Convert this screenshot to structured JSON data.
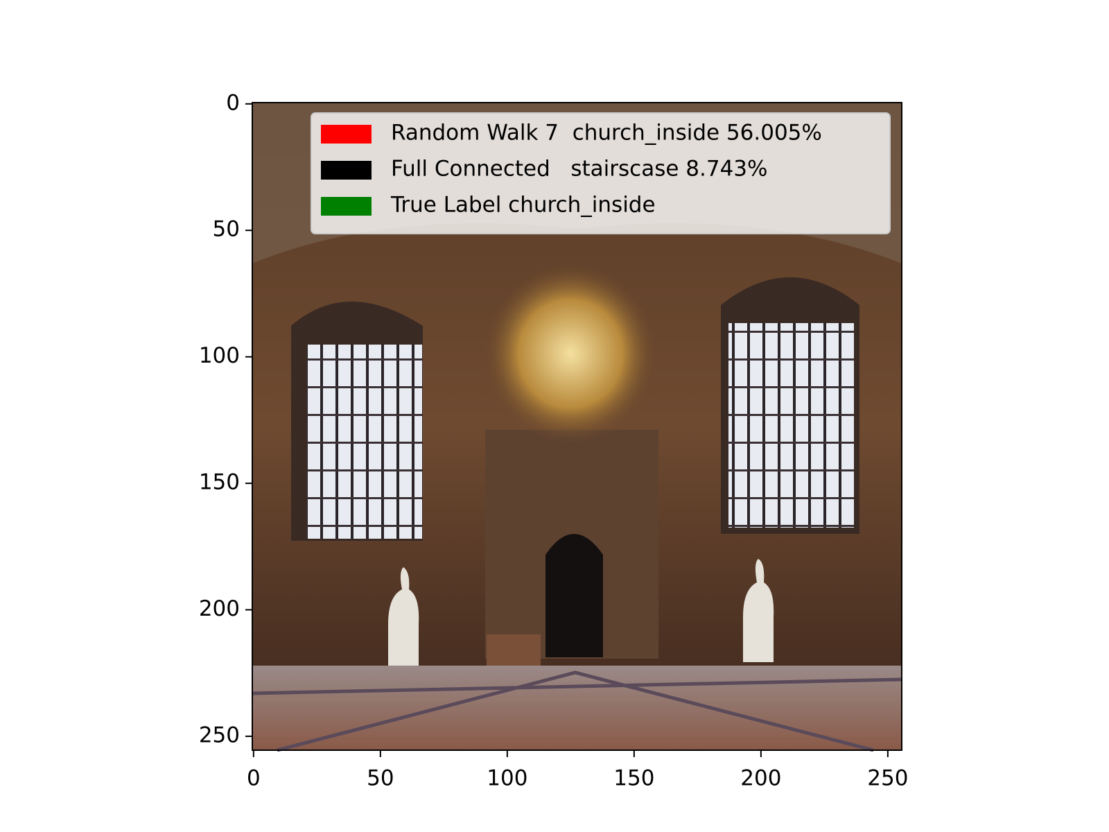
{
  "chart_data": {
    "type": "image",
    "xlim": [
      -0.5,
      255.5
    ],
    "ylim": [
      255.5,
      -0.5
    ],
    "xticks": [
      0,
      50,
      100,
      150,
      200,
      250
    ],
    "yticks": [
      0,
      50,
      100,
      150,
      200,
      250
    ],
    "legend_loc": "upper right",
    "series": [
      {
        "name": "Random Walk 7  church_inside 56.005%",
        "color": "#ff0000"
      },
      {
        "name": "Full Connected   stairscase 8.743%",
        "color": "#000000"
      },
      {
        "name": "True Label church_inside",
        "color": "#008000"
      }
    ]
  }
}
